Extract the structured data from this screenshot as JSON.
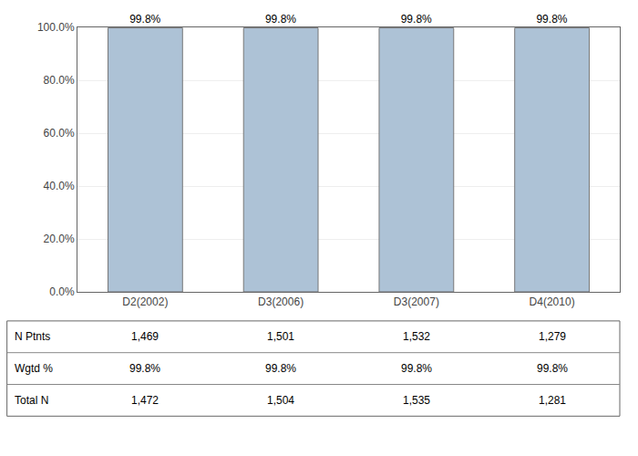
{
  "chart_data": {
    "type": "bar",
    "categories": [
      "D2(2002)",
      "D3(2006)",
      "D3(2007)",
      "D4(2010)"
    ],
    "values": [
      99.8,
      99.8,
      99.8,
      99.8
    ],
    "value_labels": [
      "99.8%",
      "99.8%",
      "99.8%",
      "99.8%"
    ],
    "data_labels": true,
    "color": "#adc2d6",
    "ylim": [
      0,
      100
    ],
    "yticks": [
      {
        "value": 0,
        "label": "0.0%"
      },
      {
        "value": 20,
        "label": "20.0%"
      },
      {
        "value": 40,
        "label": "40.0%"
      },
      {
        "value": 60,
        "label": "60.0%"
      },
      {
        "value": 80,
        "label": "80.0%"
      },
      {
        "value": 100,
        "label": "100.0%"
      }
    ],
    "grid": true,
    "table": [
      [
        "N Ptnts",
        "1,469",
        "1,501",
        "1,532",
        "1,279"
      ],
      [
        "Wgtd %",
        "99.8%",
        "99.8%",
        "99.8%",
        "99.8%"
      ],
      [
        "Total N",
        "1,472",
        "1,504",
        "1,535",
        "1,281"
      ]
    ]
  }
}
